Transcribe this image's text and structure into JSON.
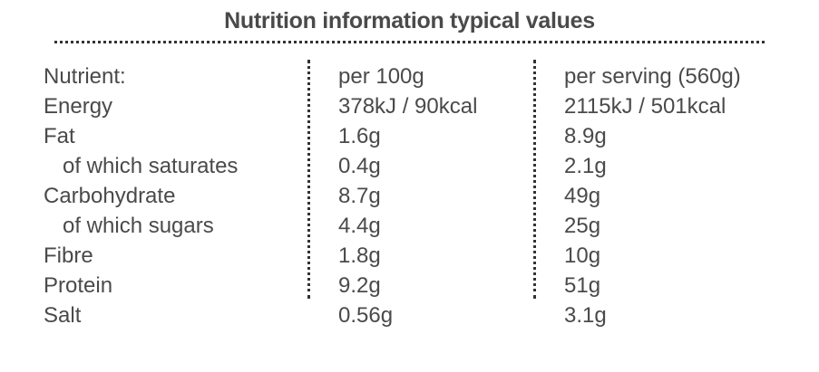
{
  "title": "Nutrition information typical values",
  "header": {
    "nutrient": "Nutrient:",
    "per100": "per 100g",
    "serving": "per serving (560g)"
  },
  "rows": [
    {
      "name": "Energy",
      "per100": "378kJ / 90kcal",
      "serving": "2115kJ / 501kcal"
    },
    {
      "name": "Fat",
      "per100": "1.6g",
      "serving": "8.9g"
    },
    {
      "name": "of which saturates",
      "per100": "0.4g",
      "serving": "2.1g"
    },
    {
      "name": "Carbohydrate",
      "per100": "8.7g",
      "serving": "49g"
    },
    {
      "name": "of which sugars",
      "per100": "4.4g",
      "serving": "25g"
    },
    {
      "name": "Fibre",
      "per100": "1.8g",
      "serving": "10g"
    },
    {
      "name": "Protein",
      "per100": "9.2g",
      "serving": "51g"
    },
    {
      "name": "Salt",
      "per100": "0.56g",
      "serving": "3.1g"
    }
  ],
  "colors": {
    "text": "#4a4a4a",
    "rules": "#333333"
  }
}
